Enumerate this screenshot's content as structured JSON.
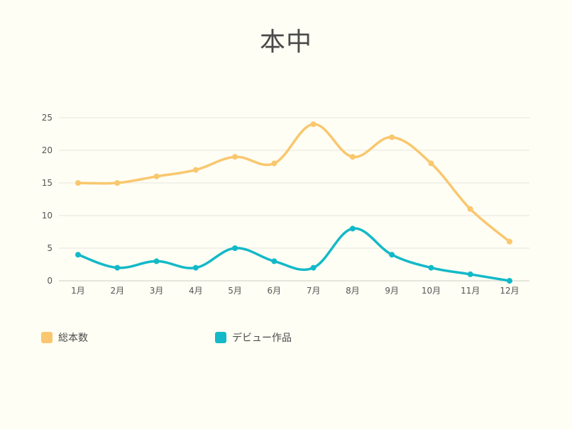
{
  "chart_data": {
    "type": "line",
    "title": "本中",
    "categories": [
      "1月",
      "2月",
      "3月",
      "4月",
      "5月",
      "6月",
      "7月",
      "8月",
      "9月",
      "10月",
      "11月",
      "12月"
    ],
    "series": [
      {
        "name": "総本数",
        "color": "#f9c76e",
        "values": [
          15,
          15,
          16,
          17,
          19,
          18,
          24,
          19,
          22,
          18,
          11,
          6
        ]
      },
      {
        "name": "デビュー作品",
        "color": "#13b9c8",
        "values": [
          4,
          2,
          3,
          2,
          5,
          3,
          2,
          8,
          4,
          2,
          1,
          0
        ]
      }
    ],
    "ylim": [
      0,
      25
    ],
    "yticks": [
      0,
      5,
      10,
      15,
      20,
      25
    ],
    "xlabel": "",
    "ylabel": "",
    "grid": true,
    "legend_position": "bottom-left",
    "smooth": true
  },
  "colors": {
    "background": "#fefef4",
    "grid": "#e6e6df",
    "axis": "#cfcfc6"
  }
}
